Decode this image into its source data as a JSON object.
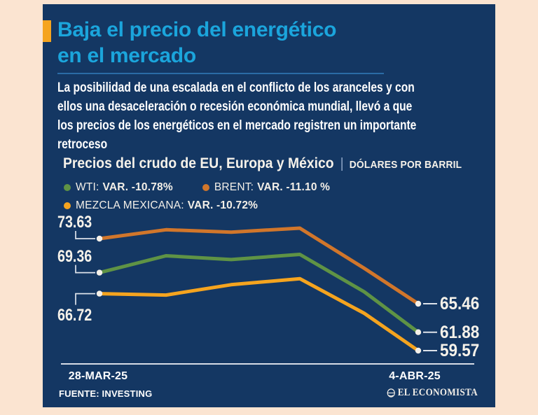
{
  "page": {
    "background": "#fbe4d1"
  },
  "card": {
    "background": "#143763",
    "accent_color": "#f5a41f"
  },
  "header": {
    "title_line1": "Baja el precio del energético",
    "title_line2": "en el mercado",
    "title_color": "#1ba5dc"
  },
  "intro": {
    "lines": [
      "La posibilidad de una escalada en el conflicto de los aranceles y con",
      "ellos una desaceleración o recesión económica mundial, llevó a que",
      "los precios de los energéticos en el mercado registren un importante",
      "retroceso"
    ]
  },
  "chart_header": {
    "title": "Precios del crudo de EU, Europa y México",
    "separator": "|",
    "unit": "DÓLARES POR BARRIL"
  },
  "legend": {
    "items": [
      {
        "row": 0,
        "label": "WTI:",
        "value": "VAR. -10.78%",
        "color": "#5f9345"
      },
      {
        "row": 0,
        "label": "BRENT:",
        "value": "VAR. -11.10 %",
        "color": "#d1762b"
      },
      {
        "row": 1,
        "label": "MEZCLA MEXICANA:",
        "value": "VAR. -10.72%",
        "color": "#f5a41f"
      }
    ]
  },
  "chart_data": {
    "type": "line",
    "title": "Precios del crudo de EU, Europa y México",
    "ylabel": "DÓLARES POR BARRIL",
    "x_axis_labels": {
      "start": "28-MAR-25",
      "end": "4-ABR-25"
    },
    "x_point_count": 6,
    "grid": false,
    "series": [
      {
        "name": "BRENT",
        "color": "#d1762b",
        "values": [
          73.63,
          74.75,
          74.45,
          74.95,
          69.9,
          65.46
        ],
        "start_label": "73.63",
        "end_label": "65.46",
        "start_label_pos": "above",
        "variation": "-11.10 %"
      },
      {
        "name": "WTI",
        "color": "#5f9345",
        "values": [
          69.36,
          71.48,
          71.0,
          71.65,
          66.95,
          61.88
        ],
        "start_label": "69.36",
        "end_label": "61.88",
        "start_label_pos": "above",
        "variation": "-10.78%"
      },
      {
        "name": "MEZCLA MEXICANA",
        "color": "#f5a41f",
        "values": [
          66.72,
          66.55,
          67.85,
          68.6,
          64.25,
          59.57
        ],
        "start_label": "66.72",
        "end_label": "59.57",
        "start_label_pos": "below",
        "variation": "-10.72%"
      }
    ]
  },
  "footer": {
    "source": "FUENTE: INVESTING",
    "brand": "EL ECONOMISTA"
  }
}
